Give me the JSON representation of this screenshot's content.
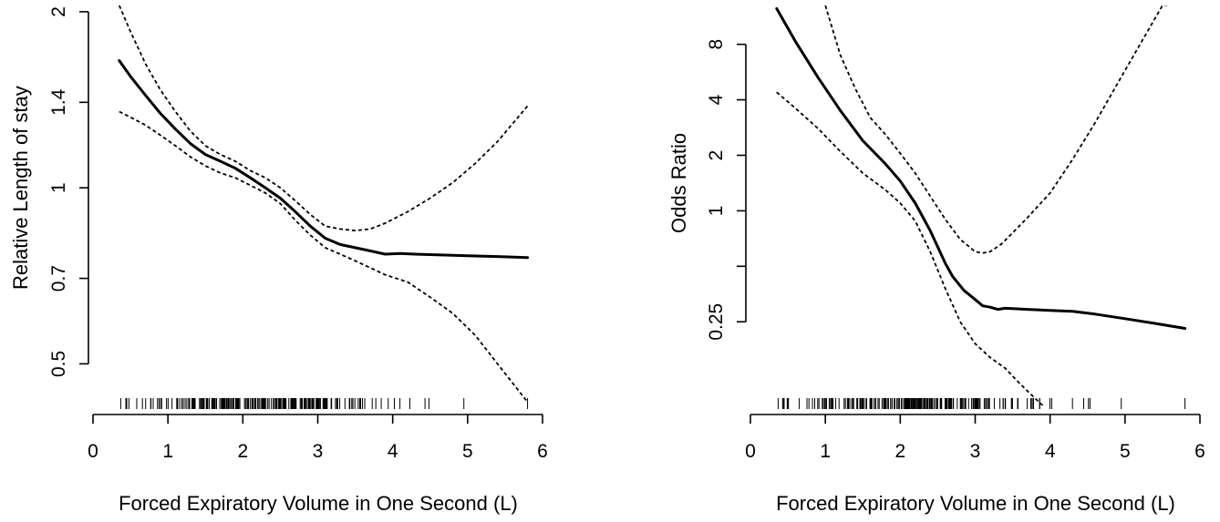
{
  "chart_data": [
    {
      "type": "line",
      "title": "",
      "xlabel": "Forced Expiratory Volume in One Second (L)",
      "ylabel": "Relative Length of stay",
      "y_scale": "log",
      "xlim": [
        0,
        6
      ],
      "ylim": [
        0.42,
        2.05
      ],
      "x_ticks": [
        0,
        1,
        2,
        3,
        4,
        5,
        6
      ],
      "x_tick_labels": [
        "0",
        "1",
        "2",
        "3",
        "4",
        "5",
        "6"
      ],
      "y_ticks": [
        0.5,
        0.7,
        1,
        1.4,
        2
      ],
      "y_tick_labels": [
        "0.5",
        "0.7",
        "1",
        "1.4",
        "2"
      ],
      "grid": false,
      "rug": true,
      "series": [
        {
          "role": "estimate",
          "x": [
            0.35,
            0.5,
            0.7,
            0.9,
            1.1,
            1.3,
            1.5,
            1.7,
            1.9,
            2.1,
            2.3,
            2.5,
            2.7,
            2.9,
            3.1,
            3.3,
            3.5,
            3.7,
            3.9,
            4.1,
            4.3,
            4.6,
            5.0,
            5.4,
            5.8
          ],
          "y": [
            1.65,
            1.55,
            1.44,
            1.34,
            1.26,
            1.19,
            1.14,
            1.11,
            1.08,
            1.04,
            1.0,
            0.96,
            0.91,
            0.86,
            0.82,
            0.8,
            0.79,
            0.78,
            0.77,
            0.772,
            0.77,
            0.768,
            0.765,
            0.763,
            0.76
          ]
        },
        {
          "role": "upper",
          "x": [
            0.35,
            0.5,
            0.7,
            0.9,
            1.1,
            1.3,
            1.5,
            1.7,
            1.9,
            2.1,
            2.3,
            2.5,
            2.7,
            2.9,
            3.1,
            3.3,
            3.5,
            3.7,
            3.9,
            4.2,
            4.5,
            4.8,
            5.1,
            5.4,
            5.8
          ],
          "y": [
            2.05,
            1.85,
            1.63,
            1.47,
            1.35,
            1.25,
            1.18,
            1.14,
            1.11,
            1.07,
            1.04,
            1.0,
            0.95,
            0.9,
            0.86,
            0.85,
            0.845,
            0.85,
            0.87,
            0.91,
            0.96,
            1.02,
            1.1,
            1.2,
            1.38
          ]
        },
        {
          "role": "lower",
          "x": [
            0.35,
            0.5,
            0.7,
            0.9,
            1.1,
            1.3,
            1.5,
            1.7,
            1.9,
            2.1,
            2.3,
            2.5,
            2.7,
            2.9,
            3.1,
            3.3,
            3.5,
            3.7,
            3.9,
            4.2,
            4.5,
            4.8,
            5.1,
            5.4,
            5.8
          ],
          "y": [
            1.35,
            1.32,
            1.28,
            1.23,
            1.18,
            1.13,
            1.09,
            1.06,
            1.04,
            1.01,
            0.98,
            0.94,
            0.88,
            0.83,
            0.79,
            0.77,
            0.75,
            0.73,
            0.71,
            0.69,
            0.65,
            0.61,
            0.56,
            0.5,
            0.43
          ]
        }
      ]
    },
    {
      "type": "line",
      "title": "",
      "xlabel": "Forced Expiratory Volume in One Second (L)",
      "ylabel": "Odds Ratio",
      "y_scale": "log",
      "xlim": [
        0,
        6
      ],
      "ylim": [
        0.085,
        13
      ],
      "x_ticks": [
        0,
        1,
        2,
        3,
        4,
        5,
        6
      ],
      "x_tick_labels": [
        "0",
        "1",
        "2",
        "3",
        "4",
        "5",
        "6"
      ],
      "y_ticks": [
        0.25,
        0.5,
        1,
        2,
        4,
        8
      ],
      "y_tick_labels": [
        "0.25",
        "",
        "1",
        "2",
        "4",
        "8"
      ],
      "grid": false,
      "rug": true,
      "series": [
        {
          "role": "estimate",
          "x": [
            0.35,
            0.6,
            0.9,
            1.2,
            1.5,
            1.8,
            2.0,
            2.2,
            2.4,
            2.6,
            2.7,
            2.85,
            3.0,
            3.1,
            3.2,
            3.3,
            3.4,
            3.5,
            3.7,
            4.0,
            4.3,
            4.6,
            5.0,
            5.4,
            5.8
          ],
          "y": [
            12.5,
            8.3,
            5.3,
            3.5,
            2.4,
            1.8,
            1.45,
            1.1,
            0.78,
            0.52,
            0.44,
            0.37,
            0.33,
            0.305,
            0.3,
            0.292,
            0.296,
            0.295,
            0.292,
            0.288,
            0.285,
            0.275,
            0.26,
            0.245,
            0.23
          ]
        },
        {
          "role": "upper",
          "x": [
            1.0,
            1.2,
            1.4,
            1.6,
            1.8,
            2.0,
            2.2,
            2.4,
            2.6,
            2.8,
            3.0,
            3.1,
            3.2,
            3.35,
            3.5,
            3.7,
            4.0,
            4.3,
            4.6,
            4.9,
            5.2,
            5.5,
            5.8
          ],
          "y": [
            13.0,
            7.0,
            4.6,
            3.2,
            2.6,
            2.05,
            1.6,
            1.2,
            0.9,
            0.7,
            0.6,
            0.59,
            0.6,
            0.66,
            0.76,
            0.92,
            1.25,
            1.9,
            3.0,
            4.9,
            8.0,
            13.0,
            13.5
          ]
        },
        {
          "role": "lower",
          "x": [
            0.35,
            0.6,
            0.9,
            1.2,
            1.5,
            1.8,
            2.0,
            2.2,
            2.4,
            2.6,
            2.8,
            3.0,
            3.2,
            3.4,
            3.6,
            3.8,
            3.9
          ],
          "y": [
            4.4,
            3.6,
            2.8,
            2.1,
            1.6,
            1.3,
            1.1,
            0.88,
            0.6,
            0.38,
            0.25,
            0.19,
            0.16,
            0.14,
            0.115,
            0.096,
            0.088
          ]
        }
      ]
    }
  ]
}
